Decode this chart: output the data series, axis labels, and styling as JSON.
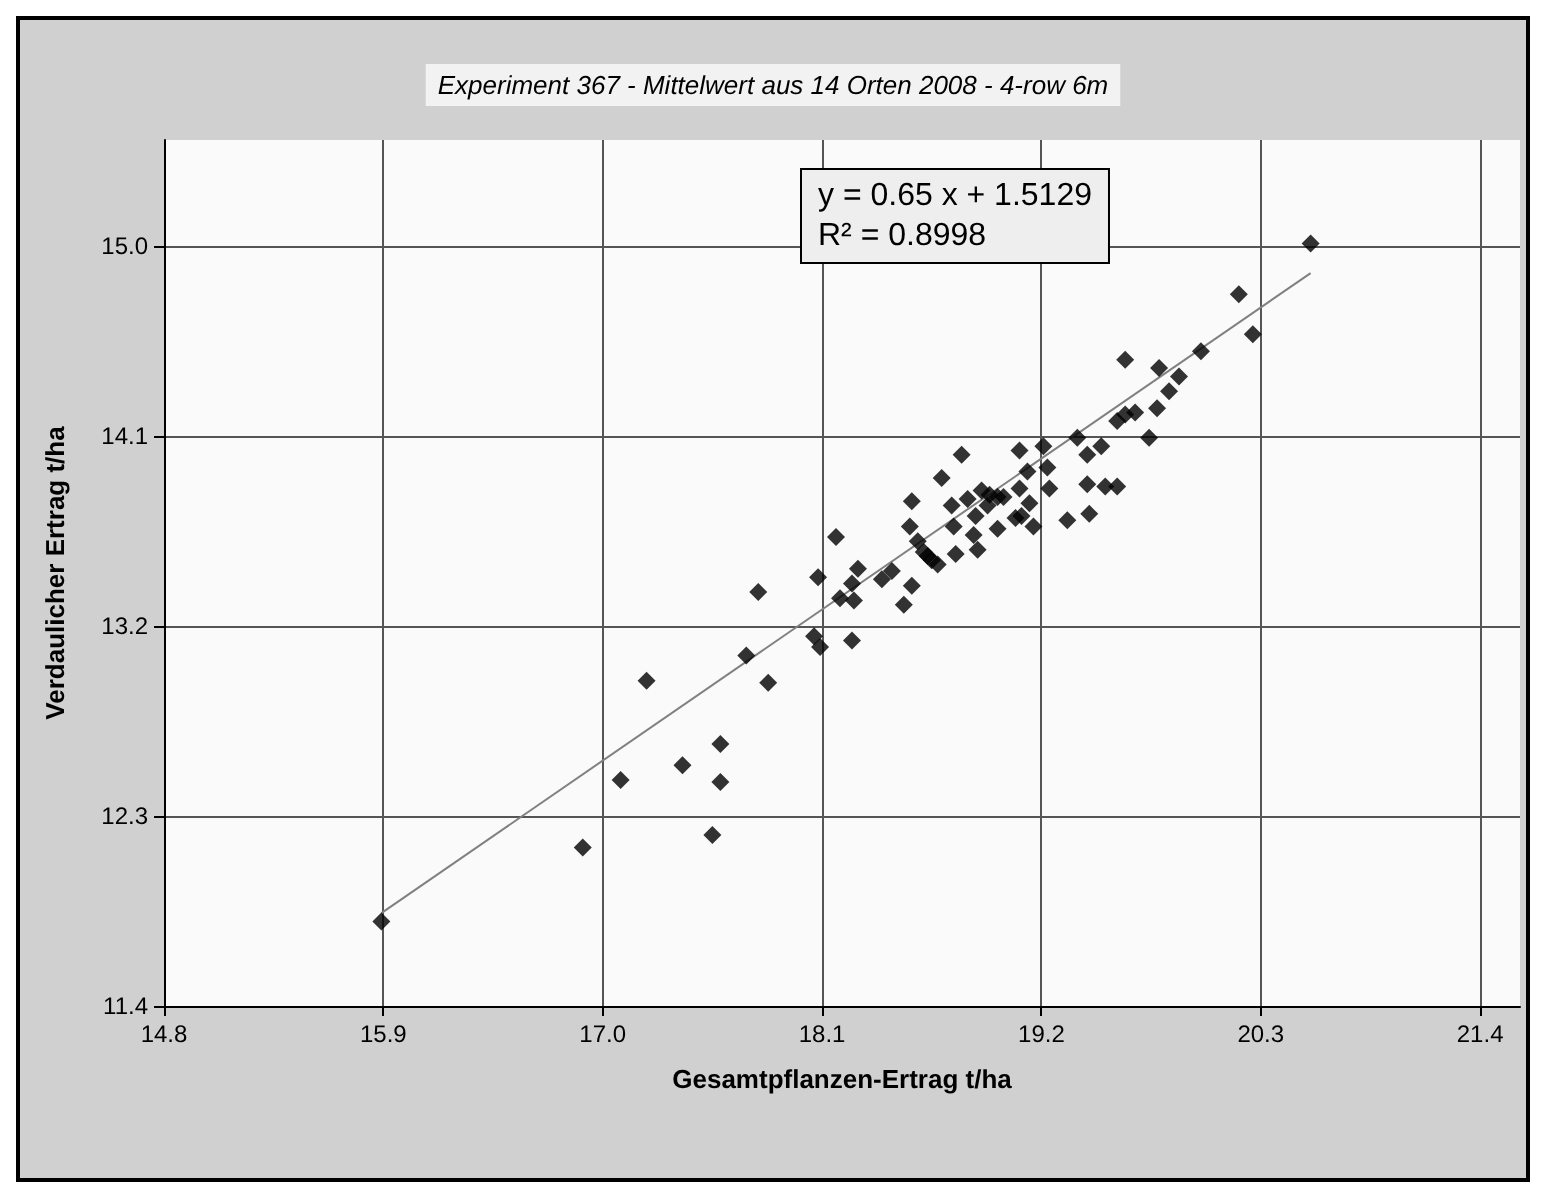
{
  "chart_data": {
    "type": "scatter",
    "title": "Experiment 367 - Mittelwert aus 14 Orten 2008 - 4-row 6m",
    "xlabel": "Gesamtpflanzen-Ertrag t/ha",
    "ylabel": "Verdaulicher Ertrag t/ha",
    "annotations": [
      "y = 0.65 x + 1.5129",
      "R² = 0.8998"
    ],
    "xlim": [
      14.8,
      21.6
    ],
    "xticks": [
      14.8,
      15.9,
      {
        "value": 17,
        "label": "17.0"
      },
      18.1,
      19.2,
      20.3,
      21.4
    ],
    "ylim": [
      11.4,
      15.5
    ],
    "yticks": [
      11.4,
      12.3,
      13.2,
      14.1,
      {
        "value": 15,
        "label": "15.0"
      }
    ],
    "grid": true,
    "marker": "diamond",
    "series": [
      {
        "color": "#000000",
        "x": [
          15.89,
          16.9,
          17.09,
          17.22,
          17.4,
          17.59,
          17.59,
          17.55,
          17.72,
          17.83,
          17.78,
          18.08,
          18.06,
          18.09,
          18.25,
          18.19,
          18.25,
          18.26,
          18.28,
          18.17,
          18.4,
          18.45,
          18.51,
          18.55,
          18.55,
          18.54,
          18.58,
          18.61,
          18.63,
          18.65,
          18.68,
          18.7,
          18.75,
          18.76,
          18.8,
          18.77,
          18.83,
          18.86,
          18.88,
          18.87,
          18.9,
          18.94,
          18.98,
          19.01,
          18.93,
          18.98,
          19.07,
          19.1,
          19.09,
          19.09,
          19.13,
          19.14,
          19.16,
          19.21,
          19.23,
          19.24,
          19.33,
          19.38,
          19.43,
          19.43,
          19.44,
          19.5,
          19.52,
          19.58,
          19.58,
          19.62,
          19.67,
          19.74,
          19.78,
          19.84,
          19.62,
          19.79,
          19.89,
          20.0,
          20.19,
          20.26,
          20.55
        ],
        "values": [
          11.8,
          12.15,
          12.47,
          12.94,
          12.54,
          12.64,
          12.46,
          12.21,
          13.06,
          12.93,
          13.36,
          13.43,
          13.15,
          13.1,
          13.13,
          13.33,
          13.4,
          13.32,
          13.47,
          13.62,
          13.42,
          13.46,
          13.3,
          13.39,
          13.79,
          13.67,
          13.6,
          13.55,
          13.53,
          13.51,
          13.49,
          13.9,
          13.77,
          13.67,
          14.01,
          13.54,
          13.8,
          13.63,
          13.56,
          13.72,
          13.84,
          13.82,
          13.81,
          13.81,
          13.77,
          13.66,
          13.71,
          13.72,
          13.85,
          14.03,
          13.93,
          13.78,
          13.67,
          14.05,
          13.95,
          13.85,
          13.7,
          14.09,
          14.01,
          13.87,
          13.73,
          14.05,
          13.86,
          13.86,
          14.17,
          14.2,
          14.21,
          14.09,
          14.23,
          14.31,
          14.46,
          14.42,
          14.38,
          14.5,
          14.77,
          14.58,
          15.01
        ]
      },
      {
        "type": "line",
        "color": "#808080",
        "marker": "none",
        "x": [
          15.89,
          20.55
        ],
        "values": [
          11.84,
          14.87
        ]
      }
    ]
  }
}
